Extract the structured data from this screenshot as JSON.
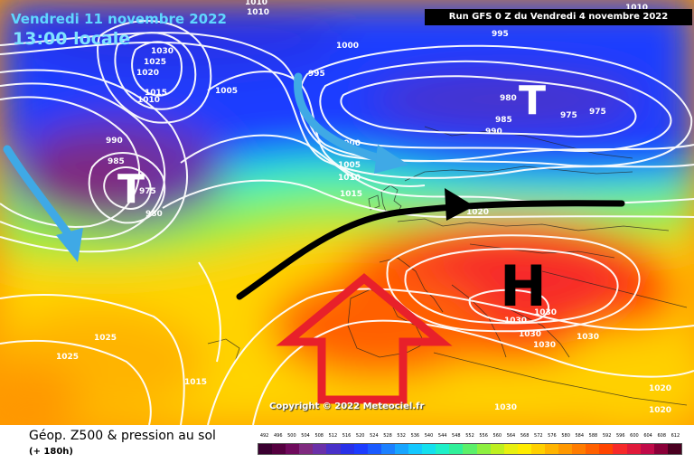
{
  "header": {
    "date": "Vendredi 11 novembre 2022",
    "time": "13:00 locale",
    "run": "Run GFS 0 Z du Vendredi 4 novembre 2022",
    "copyright": "Copyright © 2022 Meteociel.fr"
  },
  "footer": {
    "title": "Géop. Z500 & pression au sol",
    "subtitle": "(+ 180h)"
  },
  "centers": [
    {
      "type": "low",
      "label": "T"
    },
    {
      "type": "low",
      "label": "T"
    },
    {
      "type": "high",
      "label": "H"
    }
  ],
  "isobar_labels": [
    "1010",
    "1030",
    "1025",
    "1020",
    "1015",
    "1010",
    "1005",
    "1000",
    "995",
    "990",
    "985",
    "975",
    "980",
    "995",
    "1000",
    "1005",
    "1010",
    "1015",
    "980",
    "985",
    "990",
    "975",
    "975",
    "1010",
    "1020",
    "1030",
    "1030",
    "1030",
    "1030",
    "1030",
    "1030",
    "1020",
    "1025",
    "1015",
    "1025",
    "1020"
  ],
  "arrows": [
    {
      "name": "jet-stream",
      "color": "#000000"
    },
    {
      "name": "cold-air-flow",
      "color": "#3fa9e6"
    },
    {
      "name": "warm-air-advection",
      "color": "#e8202a"
    }
  ],
  "colors": {
    "header_text": "#5fd7ff",
    "isobars": "#ffffff",
    "runbox_bg": "#000000"
  },
  "legend": {
    "ticks": [
      "492",
      "496",
      "500",
      "504",
      "508",
      "512",
      "516",
      "520",
      "524",
      "528",
      "532",
      "536",
      "540",
      "544",
      "548",
      "552",
      "556",
      "560",
      "564",
      "568",
      "572",
      "576",
      "580",
      "584",
      "588",
      "592",
      "596",
      "600",
      "604",
      "608",
      "612"
    ],
    "colors": [
      "#3a0030",
      "#55003f",
      "#6f0a5c",
      "#7f2a7f",
      "#6a30a8",
      "#4830c8",
      "#2830e8",
      "#1c3cff",
      "#1a5aff",
      "#1c80ff",
      "#18a5ff",
      "#14c8ff",
      "#14e0ee",
      "#1ef0c8",
      "#30f09a",
      "#5cf06a",
      "#8ef040",
      "#bef020",
      "#e8f010",
      "#ffec00",
      "#ffd000",
      "#ffb400",
      "#ff9800",
      "#ff7c00",
      "#ff6000",
      "#ff4400",
      "#f62a2a",
      "#e01a3a",
      "#c00a48",
      "#8a0038",
      "#4a0020"
    ]
  }
}
